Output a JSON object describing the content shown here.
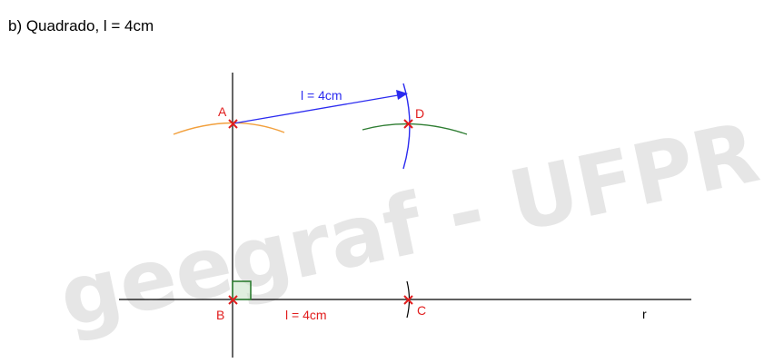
{
  "title": "b) Quadrado, l = 4cm",
  "watermark": "geegraf - UFPR",
  "labels": {
    "point_a": "A",
    "point_b": "B",
    "point_c": "C",
    "point_d": "D",
    "line_r": "r",
    "length_top": "l = 4cm",
    "length_bottom": "l = 4cm"
  },
  "colors": {
    "point": "#e11d1d",
    "arrow": "#2b2bf0",
    "arc_a": "#f2a03d",
    "arc_d": "#2e7d32",
    "right_angle": "#2e7d32",
    "lines": "#000000",
    "watermark": "#e6e6e6"
  }
}
